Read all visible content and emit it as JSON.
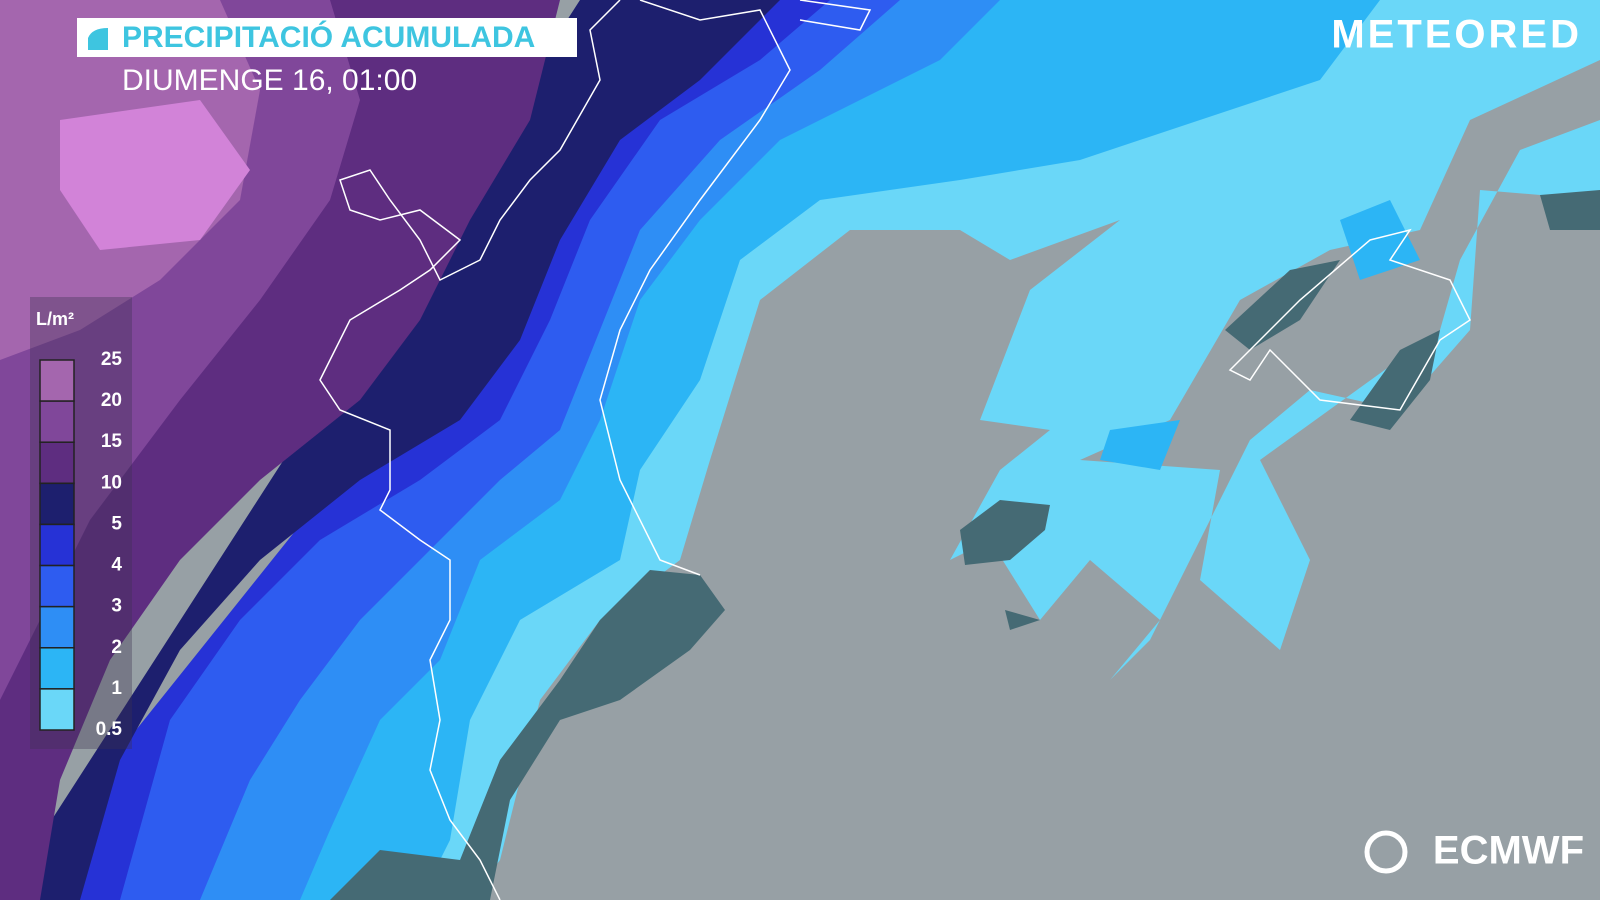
{
  "header": {
    "title": "PRECIPITACIÓ ACUMULADA",
    "subtitle": "DIUMENGE 16, 01:00"
  },
  "brand": {
    "logo": "METEORED",
    "source": "ECMWF"
  },
  "legend": {
    "unit": "L/m²",
    "labels": [
      "25",
      "20",
      "15",
      "10",
      "5",
      "4",
      "3",
      "2",
      "1",
      "0.5"
    ],
    "colors": [
      "#a466ae",
      "#80479a",
      "#5e2d80",
      "#1d1f6e",
      "#2632d6",
      "#2e5cf0",
      "#2e8ef5",
      "#2cb5f5",
      "#6ad7f8"
    ]
  }
}
